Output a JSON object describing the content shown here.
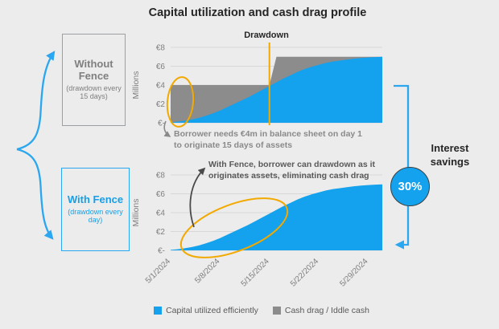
{
  "title": "Capital utilization and cash drag profile",
  "colors": {
    "blue": "#14A1ED",
    "gray": "#8C8C8C",
    "orange": "#F2A900",
    "background": "#ECECEC",
    "dark_text": "#262626"
  },
  "left_panel": {
    "without_fence": {
      "title": "Without Fence",
      "subtitle": "(drawdown every 15 days)"
    },
    "with_fence": {
      "title": "With Fence",
      "subtitle": "(drawdown every day)"
    }
  },
  "right_panel": {
    "label": "Interest savings",
    "badge": "30%"
  },
  "annotations": {
    "without_note": "Borrower needs €4m in balance sheet on day 1 to originate 15 days of assets",
    "with_note": "With Fence, borrower can drawdown as it originates assets, eliminating cash drag"
  },
  "legend": [
    {
      "label": "Capital utilized efficiently",
      "color": "#14A1ED"
    },
    {
      "label": "Cash drag / Iddle cash",
      "color": "#8C8C8C"
    }
  ],
  "chart_data": [
    {
      "name": "without-fence",
      "type": "area",
      "ylabel": "Millions",
      "ylim": [
        0,
        8
      ],
      "yticks": [
        {
          "value": 0,
          "label": "€-"
        },
        {
          "value": 2,
          "label": "€2"
        },
        {
          "value": 4,
          "label": "€4"
        },
        {
          "value": 6,
          "label": "€6"
        },
        {
          "value": 8,
          "label": "€8"
        }
      ],
      "x": [
        1,
        2,
        3,
        4,
        5,
        6,
        7,
        8,
        9,
        10,
        11,
        12,
        13,
        14,
        15,
        16,
        17,
        18,
        19,
        20,
        21,
        22,
        23,
        24,
        25,
        26,
        27,
        28,
        29,
        30,
        31
      ],
      "xticks": [
        {
          "day": 1,
          "label": "5/1/2024"
        },
        {
          "day": 8,
          "label": "5/8/2024"
        },
        {
          "day": 15,
          "label": "5/15/2024"
        },
        {
          "day": 22,
          "label": "5/22/2024"
        },
        {
          "day": 29,
          "label": "5/29/2024"
        }
      ],
      "marker": {
        "day": 15,
        "label": "Drawdown"
      },
      "series": [
        {
          "name": "Cash drag / Iddle cash",
          "color": "#8C8C8C",
          "values": [
            4,
            4,
            4,
            4,
            4,
            4,
            4,
            4,
            4,
            4,
            4,
            4,
            4,
            4,
            4,
            7,
            7,
            7,
            7,
            7,
            7,
            7,
            7,
            7,
            7,
            7,
            7,
            7,
            7,
            7,
            7
          ]
        },
        {
          "name": "Capital utilized efficiently",
          "color": "#14A1ED",
          "values": [
            0.05,
            0.12,
            0.22,
            0.35,
            0.52,
            0.75,
            1.0,
            1.3,
            1.65,
            2.0,
            2.35,
            2.7,
            3.1,
            3.5,
            3.9,
            4.3,
            4.7,
            5.05,
            5.4,
            5.7,
            5.95,
            6.15,
            6.35,
            6.5,
            6.6,
            6.7,
            6.8,
            6.87,
            6.93,
            6.97,
            7.0
          ]
        }
      ]
    },
    {
      "name": "with-fence",
      "type": "area",
      "ylabel": "Millions",
      "ylim": [
        0,
        8
      ],
      "yticks": [
        {
          "value": 0,
          "label": "€-"
        },
        {
          "value": 2,
          "label": "€2"
        },
        {
          "value": 4,
          "label": "€4"
        },
        {
          "value": 6,
          "label": "€6"
        },
        {
          "value": 8,
          "label": "€8"
        }
      ],
      "x": [
        1,
        2,
        3,
        4,
        5,
        6,
        7,
        8,
        9,
        10,
        11,
        12,
        13,
        14,
        15,
        16,
        17,
        18,
        19,
        20,
        21,
        22,
        23,
        24,
        25,
        26,
        27,
        28,
        29,
        30,
        31
      ],
      "xticks": [
        {
          "day": 1,
          "label": "5/1/2024"
        },
        {
          "day": 8,
          "label": "5/8/2024"
        },
        {
          "day": 15,
          "label": "5/15/2024"
        },
        {
          "day": 22,
          "label": "5/22/2024"
        },
        {
          "day": 29,
          "label": "5/29/2024"
        }
      ],
      "series": [
        {
          "name": "Capital utilized efficiently",
          "color": "#14A1ED",
          "values": [
            0.05,
            0.12,
            0.22,
            0.35,
            0.52,
            0.75,
            1.0,
            1.3,
            1.65,
            2.0,
            2.35,
            2.7,
            3.1,
            3.5,
            3.9,
            4.3,
            4.7,
            5.05,
            5.4,
            5.7,
            5.95,
            6.15,
            6.35,
            6.5,
            6.6,
            6.7,
            6.8,
            6.87,
            6.93,
            6.97,
            7.0
          ]
        }
      ]
    }
  ]
}
